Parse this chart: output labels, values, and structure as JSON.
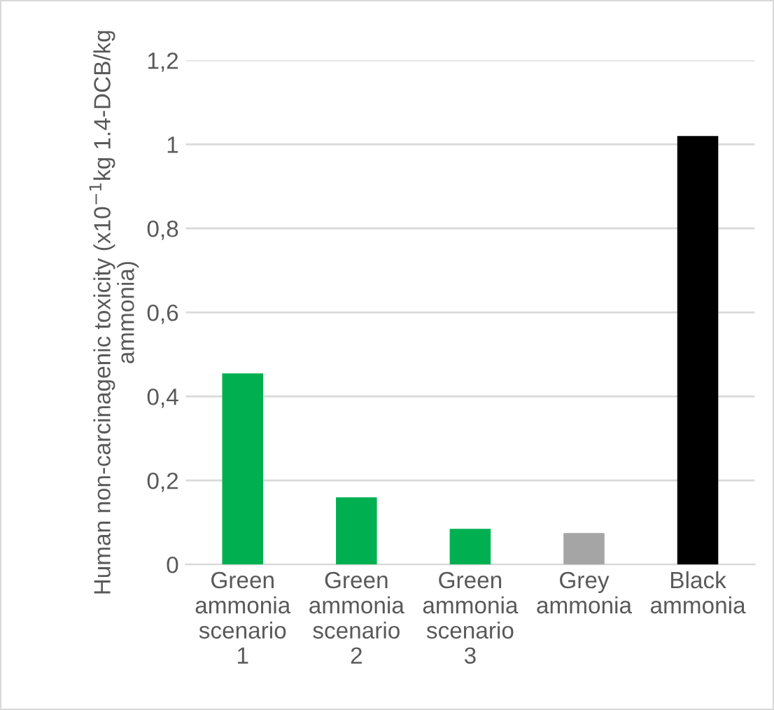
{
  "chart_data": {
    "type": "bar",
    "ylabel": "Human non-carcinagenic toxicity (x10$^{−1}$kg 1.4-DCB/kg ammonia)",
    "categories": [
      "Green\nammonia\nscenario\n1",
      "Green\nammonia\nscenario\n2",
      "Green\nammonia\nscenario\n3",
      "Grey\nammonia",
      "Black\nammonia"
    ],
    "values": [
      0.455,
      0.16,
      0.085,
      0.075,
      1.02
    ],
    "colors": [
      "#00b050",
      "#00b050",
      "#00b050",
      "#a5a5a5",
      "#000000"
    ],
    "ylim": [
      0,
      1.2
    ],
    "yticks": [
      0,
      {
        "value": 0.2,
        "label": "0,2"
      },
      {
        "value": 0.4,
        "label": "0,4"
      },
      {
        "value": 0.6,
        "label": "0,6"
      },
      {
        "value": 0.8,
        "label": "0,8"
      },
      1,
      {
        "value": 1.2,
        "label": "1,2"
      }
    ],
    "grid": "y",
    "legend": false
  }
}
